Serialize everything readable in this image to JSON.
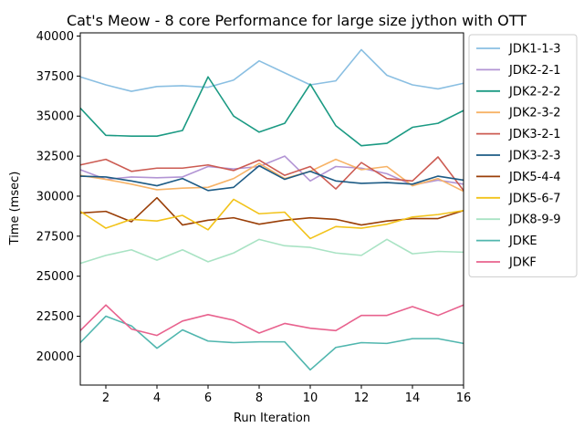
{
  "chart_data": {
    "type": "line",
    "title": "Cat's Meow - 8 core Performance for large size jython with OTT",
    "xlabel": "Run Iteration",
    "ylabel": "Time (msec)",
    "xlim": [
      1,
      16
    ],
    "ylim": [
      18200,
      40200
    ],
    "xticks": [
      2,
      4,
      6,
      8,
      10,
      12,
      14,
      16
    ],
    "yticks": [
      20000,
      22500,
      25000,
      27500,
      30000,
      32500,
      35000,
      37500,
      40000
    ],
    "grid": false,
    "legend_position": "outside-right-top",
    "x": [
      1,
      2,
      3,
      4,
      5,
      6,
      7,
      8,
      9,
      10,
      11,
      12,
      13,
      14,
      15,
      16
    ],
    "series": [
      {
        "name": "JDK1-1-3",
        "color": "#8abfe2",
        "values": [
          37450,
          36950,
          36550,
          36850,
          36900,
          36800,
          37250,
          38450,
          37700,
          36950,
          37200,
          39150,
          37550,
          36950,
          36700,
          37050
        ]
      },
      {
        "name": "JDK2-2-1",
        "color": "#b294d4",
        "values": [
          31650,
          31050,
          31200,
          31150,
          31200,
          31850,
          31700,
          31850,
          32500,
          30950,
          31850,
          31750,
          31400,
          30700,
          31000,
          30750
        ]
      },
      {
        "name": "JDK2-2-2",
        "color": "#1b9a83",
        "values": [
          35500,
          33800,
          33750,
          33750,
          34100,
          37450,
          35000,
          34000,
          34550,
          37000,
          34400,
          33150,
          33300,
          34300,
          34550,
          35350
        ]
      },
      {
        "name": "JDK2-3-2",
        "color": "#f7b367",
        "values": [
          31300,
          31050,
          30750,
          30400,
          30500,
          30550,
          31100,
          32050,
          31100,
          31550,
          32300,
          31650,
          31850,
          30650,
          31100,
          30300
        ]
      },
      {
        "name": "JDK3-2-1",
        "color": "#cc5b52",
        "values": [
          31950,
          32300,
          31550,
          31750,
          31750,
          31950,
          31600,
          32250,
          31300,
          31850,
          30450,
          32100,
          31100,
          30950,
          32450,
          30350
        ]
      },
      {
        "name": "JDK3-2-3",
        "color": "#1d5b85",
        "values": [
          31250,
          31200,
          30950,
          30650,
          31100,
          30350,
          30550,
          31900,
          31050,
          31550,
          30950,
          30800,
          30850,
          30750,
          31250,
          31000
        ]
      },
      {
        "name": "JDK5-4-4",
        "color": "#9a3f08",
        "values": [
          28950,
          29050,
          28400,
          29900,
          28200,
          28500,
          28650,
          28250,
          28500,
          28650,
          28550,
          28200,
          28450,
          28600,
          28600,
          29100
        ]
      },
      {
        "name": "JDK5-6-7",
        "color": "#f2c31a",
        "values": [
          29050,
          28000,
          28550,
          28450,
          28800,
          27900,
          29800,
          28900,
          29000,
          27350,
          28100,
          28000,
          28250,
          28700,
          28850,
          29100
        ]
      },
      {
        "name": "JDK8-9-9",
        "color": "#a9e3c4",
        "values": [
          25800,
          26300,
          26650,
          26000,
          26650,
          25900,
          26450,
          27300,
          26900,
          26800,
          26450,
          26300,
          27300,
          26400,
          26550,
          26500
        ]
      },
      {
        "name": "JDKE",
        "color": "#50b6ae",
        "values": [
          20850,
          22500,
          21900,
          20500,
          21650,
          20950,
          20850,
          20900,
          20900,
          19150,
          20550,
          20850,
          20800,
          21100,
          21100,
          20800
        ]
      },
      {
        "name": "JDKF",
        "color": "#e8628e",
        "values": [
          21600,
          23200,
          21700,
          21300,
          22200,
          22600,
          22250,
          21450,
          22050,
          21750,
          21600,
          22550,
          22550,
          23100,
          22550,
          23200
        ]
      }
    ]
  }
}
